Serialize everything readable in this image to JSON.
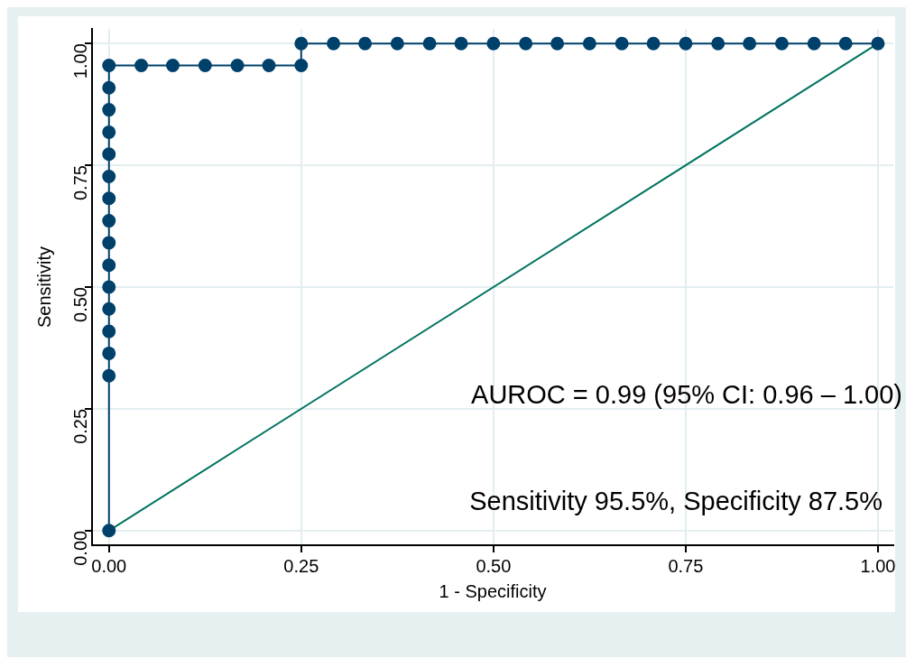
{
  "chart_data": {
    "type": "line",
    "xlabel": "1 - Specificity",
    "ylabel": "Sensitivity",
    "xlim": [
      -0.022,
      1.02
    ],
    "ylim": [
      -0.03,
      1.03
    ],
    "xticks": [
      {
        "value": 0,
        "label": "0.00"
      },
      {
        "value": 0.25,
        "label": "0.25"
      },
      {
        "value": 0.5,
        "label": "0.50"
      },
      {
        "value": 0.75,
        "label": "0.75"
      },
      {
        "value": 1,
        "label": "1.00"
      }
    ],
    "yticks": [
      {
        "value": 0,
        "label": "0.00"
      },
      {
        "value": 0.25,
        "label": "0.25"
      },
      {
        "value": 0.5,
        "label": "0.50"
      },
      {
        "value": 0.75,
        "label": "0.75"
      },
      {
        "value": 1,
        "label": "1.00"
      }
    ],
    "grid": true,
    "series": [
      {
        "color": "#00416b",
        "marker": "circle",
        "x": [
          0,
          0,
          0,
          0,
          0,
          0,
          0,
          0,
          0,
          0,
          0,
          0,
          0,
          0,
          0,
          0,
          0.042,
          0.083,
          0.125,
          0.167,
          0.208,
          0.25,
          0.25,
          0.292,
          0.333,
          0.375,
          0.417,
          0.458,
          0.5,
          0.542,
          0.583,
          0.625,
          0.667,
          0.708,
          0.75,
          0.792,
          0.833,
          0.875,
          0.917,
          0.958,
          1
        ],
        "values": [
          0,
          0.318,
          0.364,
          0.409,
          0.455,
          0.5,
          0.545,
          0.591,
          0.636,
          0.682,
          0.727,
          0.773,
          0.818,
          0.864,
          0.909,
          0.955,
          0.955,
          0.955,
          0.955,
          0.955,
          0.955,
          0.955,
          1,
          1,
          1,
          1,
          1,
          1,
          1,
          1,
          1,
          1,
          1,
          1,
          1,
          1,
          1,
          1,
          1,
          1,
          1
        ]
      },
      {
        "color": "#00735f",
        "marker": "none",
        "x": [
          0,
          1
        ],
        "values": [
          0,
          1
        ]
      }
    ],
    "annotations": [
      "AUROC = 0.99 (95% CI: 0.96 – 1.00)",
      "Sensitivity 95.5%, Specificity 87.5%"
    ]
  }
}
